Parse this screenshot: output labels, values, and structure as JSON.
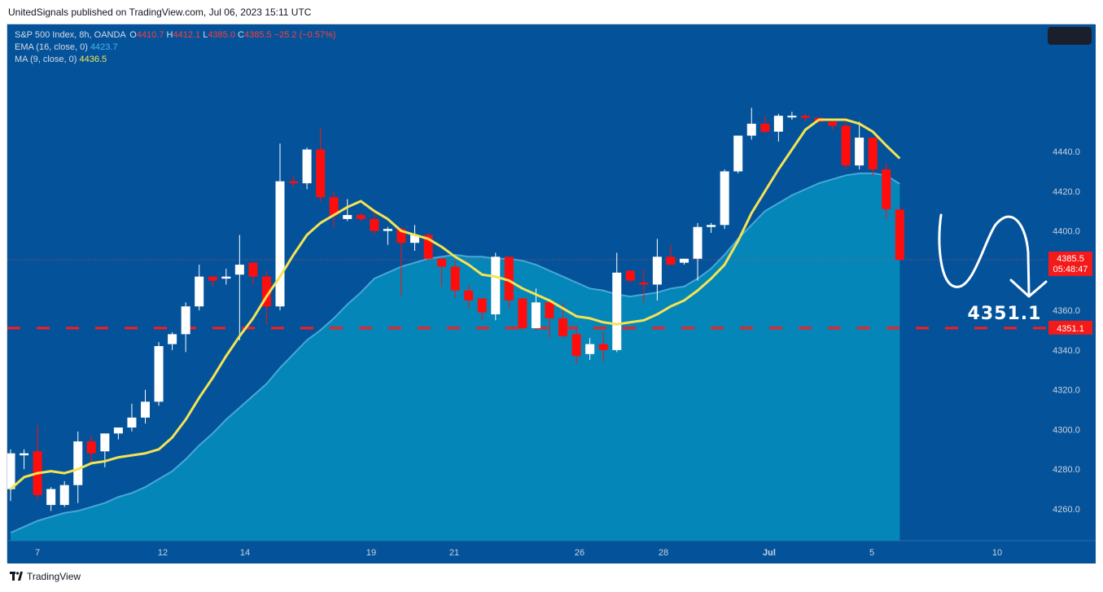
{
  "header": {
    "published_line": "UnitedSignals published on TradingView.com, Jul 06, 2023 15:11 UTC"
  },
  "legend": {
    "symbol": "S&P 500 Index, 8h, OANDA",
    "open_label": "O",
    "open_value": "4410.7",
    "high_label": "H",
    "high_value": "4412.1",
    "low_label": "L",
    "low_value": "4385.0",
    "close_label": "C",
    "close_value": "4385.5",
    "change": "−25.2 (−0.57%)",
    "ema_label": "EMA (16, close, 0)",
    "ema_value": "4423.7",
    "ma_label": "MA (9, close, 0)",
    "ma_value": "4436.5"
  },
  "price_tags": {
    "last_price": "4385.5",
    "countdown": "05:48:47",
    "target": "4351.1"
  },
  "annotation": {
    "target_text": "4351.1"
  },
  "footer": {
    "brand": "TradingView"
  },
  "colors": {
    "background": "#04539a",
    "area_fill": "#0586b8",
    "area_line": "#47a8d6",
    "bull_candle": "#ffffff",
    "bear_candle": "#ff0d0d",
    "ma_line": "#f5e353",
    "target_line": "#ff1a1a",
    "annotation": "#ffffff"
  },
  "chart_data": {
    "type": "candlestick",
    "title": "S&P 500 Index, 8h, OANDA",
    "ylim": [
      4244,
      4504
    ],
    "y_ticks": [
      4260.0,
      4280.0,
      4300.0,
      4320.0,
      4340.0,
      4360.0,
      4380.0,
      4400.0,
      4420.0,
      4440.0
    ],
    "x_ticks": [
      "7",
      "12",
      "14",
      "19",
      "21",
      "26",
      "28",
      "Jul",
      "5",
      "10"
    ],
    "candles": [
      {
        "o": 4270,
        "h": 4290,
        "l": 4264,
        "c": 4288
      },
      {
        "o": 4287,
        "h": 4290,
        "l": 4280,
        "c": 4288
      },
      {
        "o": 4289,
        "h": 4302,
        "l": 4265,
        "c": 4267
      },
      {
        "o": 4262,
        "h": 4271,
        "l": 4259,
        "c": 4270
      },
      {
        "o": 4262,
        "h": 4274,
        "l": 4261,
        "c": 4272
      },
      {
        "o": 4272,
        "h": 4299,
        "l": 4263,
        "c": 4294
      },
      {
        "o": 4294,
        "h": 4297,
        "l": 4283,
        "c": 4288
      },
      {
        "o": 4289,
        "h": 4297,
        "l": 4281,
        "c": 4298
      },
      {
        "o": 4298,
        "h": 4300,
        "l": 4295,
        "c": 4301
      },
      {
        "o": 4301,
        "h": 4313,
        "l": 4299,
        "c": 4306
      },
      {
        "o": 4306,
        "h": 4320,
        "l": 4303,
        "c": 4314
      },
      {
        "o": 4314,
        "h": 4344,
        "l": 4312,
        "c": 4342
      },
      {
        "o": 4343,
        "h": 4349,
        "l": 4340,
        "c": 4348
      },
      {
        "o": 4348,
        "h": 4364,
        "l": 4339,
        "c": 4362
      },
      {
        "o": 4362,
        "h": 4383,
        "l": 4360,
        "c": 4377
      },
      {
        "o": 4377,
        "h": 4377,
        "l": 4372,
        "c": 4375
      },
      {
        "o": 4376,
        "h": 4381,
        "l": 4373,
        "c": 4377
      },
      {
        "o": 4378,
        "h": 4398,
        "l": 4345,
        "c": 4383
      },
      {
        "o": 4384,
        "h": 4384,
        "l": 4373,
        "c": 4377
      },
      {
        "o": 4377,
        "h": 4380,
        "l": 4353,
        "c": 4362
      },
      {
        "o": 4362,
        "h": 4444,
        "l": 4360,
        "c": 4425
      },
      {
        "o": 4425,
        "h": 4428,
        "l": 4422,
        "c": 4424
      },
      {
        "o": 4424,
        "h": 4442,
        "l": 4421,
        "c": 4441
      },
      {
        "o": 4441,
        "h": 4452,
        "l": 4415,
        "c": 4417
      },
      {
        "o": 4417,
        "h": 4420,
        "l": 4402,
        "c": 4408
      },
      {
        "o": 4406,
        "h": 4416,
        "l": 4405,
        "c": 4408
      },
      {
        "o": 4408,
        "h": 4409,
        "l": 4405,
        "c": 4406
      },
      {
        "o": 4406,
        "h": 4409,
        "l": 4398,
        "c": 4400
      },
      {
        "o": 4400,
        "h": 4402,
        "l": 4393,
        "c": 4401
      },
      {
        "o": 4401,
        "h": 4402,
        "l": 4367,
        "c": 4394
      },
      {
        "o": 4394,
        "h": 4403,
        "l": 4390,
        "c": 4398
      },
      {
        "o": 4398,
        "h": 4399,
        "l": 4385,
        "c": 4386
      },
      {
        "o": 4386,
        "h": 4386,
        "l": 4372,
        "c": 4382
      },
      {
        "o": 4382,
        "h": 4385,
        "l": 4366,
        "c": 4370
      },
      {
        "o": 4370,
        "h": 4373,
        "l": 4361,
        "c": 4365
      },
      {
        "o": 4366,
        "h": 4366,
        "l": 4355,
        "c": 4359
      },
      {
        "o": 4358,
        "h": 4389,
        "l": 4355,
        "c": 4387
      },
      {
        "o": 4387,
        "h": 4387,
        "l": 4361,
        "c": 4365
      },
      {
        "o": 4366,
        "h": 4366,
        "l": 4350,
        "c": 4351
      },
      {
        "o": 4351,
        "h": 4371,
        "l": 4351,
        "c": 4364
      },
      {
        "o": 4364,
        "h": 4364,
        "l": 4346,
        "c": 4356
      },
      {
        "o": 4356,
        "h": 4364,
        "l": 4346,
        "c": 4347
      },
      {
        "o": 4348,
        "h": 4352,
        "l": 4333,
        "c": 4337
      },
      {
        "o": 4338,
        "h": 4346,
        "l": 4335,
        "c": 4343
      },
      {
        "o": 4343,
        "h": 4349,
        "l": 4334,
        "c": 4340
      },
      {
        "o": 4340,
        "h": 4389,
        "l": 4339,
        "c": 4379
      },
      {
        "o": 4380,
        "h": 4380,
        "l": 4374,
        "c": 4375
      },
      {
        "o": 4374,
        "h": 4381,
        "l": 4364,
        "c": 4373
      },
      {
        "o": 4373,
        "h": 4396,
        "l": 4365,
        "c": 4387
      },
      {
        "o": 4387,
        "h": 4393,
        "l": 4383,
        "c": 4383
      },
      {
        "o": 4384,
        "h": 4386,
        "l": 4383,
        "c": 4386
      },
      {
        "o": 4386,
        "h": 4404,
        "l": 4375,
        "c": 4402
      },
      {
        "o": 4402,
        "h": 4404,
        "l": 4399,
        "c": 4403
      },
      {
        "o": 4403,
        "h": 4431,
        "l": 4401,
        "c": 4430
      },
      {
        "o": 4430,
        "h": 4448,
        "l": 4429,
        "c": 4448
      },
      {
        "o": 4448,
        "h": 4462,
        "l": 4446,
        "c": 4454
      },
      {
        "o": 4454,
        "h": 4458,
        "l": 4449,
        "c": 4450
      },
      {
        "o": 4450,
        "h": 4459,
        "l": 4445,
        "c": 4458
      },
      {
        "o": 4458,
        "h": 4460,
        "l": 4456,
        "c": 4458
      },
      {
        "o": 4458,
        "h": 4459,
        "l": 4455,
        "c": 4457
      },
      {
        "o": 4457,
        "h": 4457,
        "l": 4454,
        "c": 4455
      },
      {
        "o": 4455,
        "h": 4456,
        "l": 4451,
        "c": 4453
      },
      {
        "o": 4453,
        "h": 4457,
        "l": 4431,
        "c": 4433
      },
      {
        "o": 4433,
        "h": 4455,
        "l": 4431,
        "c": 4447
      },
      {
        "o": 4447,
        "h": 4447,
        "l": 4428,
        "c": 4431
      },
      {
        "o": 4431,
        "h": 4434,
        "l": 4406,
        "c": 4411
      },
      {
        "o": 4410.7,
        "h": 4412.1,
        "l": 4385.0,
        "c": 4385.5
      }
    ],
    "series": [
      {
        "name": "MA (9, close, 0)",
        "type": "line",
        "color": "#f5e353",
        "values": [
          4270,
          4276,
          4278,
          4279,
          4278,
          4280,
          4283,
          4284,
          4286,
          4287,
          4288,
          4290,
          4296,
          4305,
          4316,
          4326,
          4337,
          4347,
          4356,
          4367,
          4377,
          4388,
          4398,
          4404,
          4408,
          4412,
          4415,
          4410,
          4406,
          4400,
          4398,
          4396,
          4392,
          4387,
          4383,
          4378,
          4377,
          4375,
          4371,
          4368,
          4365,
          4361,
          4357,
          4356,
          4354,
          4353,
          4354,
          4355,
          4358,
          4362,
          4365,
          4370,
          4376,
          4383,
          4395,
          4409,
          4420,
          4431,
          4441,
          4451,
          4456,
          4456,
          4456,
          4454,
          4450,
          4443,
          4436.5
        ]
      },
      {
        "name": "EMA (16, close, 0)",
        "type": "area",
        "color": "#47a8d6",
        "values": [
          4248,
          4251,
          4254,
          4256,
          4258,
          4259,
          4261,
          4263,
          4266,
          4268,
          4271,
          4275,
          4279,
          4285,
          4292,
          4298,
          4305,
          4311,
          4317,
          4323,
          4331,
          4338,
          4345,
          4350,
          4356,
          4363,
          4369,
          4376,
          4379,
          4382,
          4384,
          4386,
          4387,
          4388,
          4387,
          4387,
          4386,
          4386,
          4385,
          4383,
          4380,
          4377,
          4374,
          4371,
          4370,
          4368,
          4367,
          4368,
          4369,
          4371,
          4372,
          4376,
          4381,
          4388,
          4396,
          4403,
          4410,
          4414,
          4418,
          4421,
          4424,
          4426,
          4428,
          4429,
          4429,
          4428,
          4423.7
        ]
      }
    ],
    "target_level": 4351.1,
    "last_price": 4385.5
  }
}
